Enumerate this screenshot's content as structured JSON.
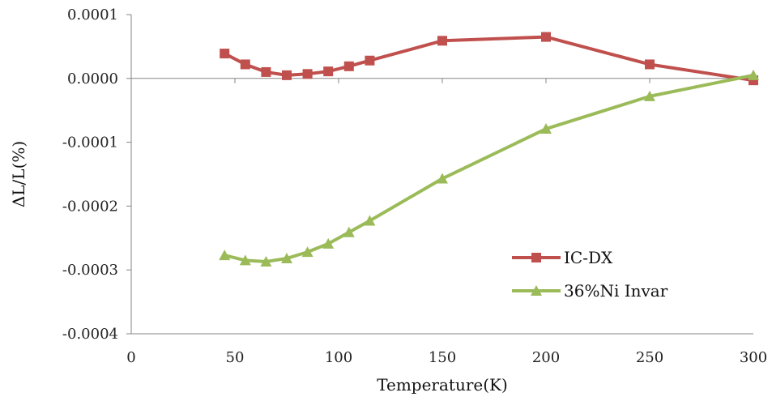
{
  "chart_data": {
    "type": "line",
    "title": "",
    "xlabel": "Temperature(K)",
    "ylabel": "ΔL/L(%)",
    "xlim": [
      0,
      300
    ],
    "ylim": [
      -0.0004,
      0.0001
    ],
    "x_ticks": [
      0,
      50,
      100,
      150,
      200,
      250,
      300
    ],
    "y_ticks": [
      0.0001,
      0.0,
      -0.0001,
      -0.0002,
      -0.0003,
      -0.0004
    ],
    "x_tick_labels": [
      "0",
      "50",
      "100",
      "150",
      "200",
      "250",
      "300"
    ],
    "y_tick_labels": [
      "0.0001",
      "0.0000",
      "-0.0001",
      "-0.0002",
      "-0.0003",
      "-0.0004"
    ],
    "grid": false,
    "legend_position": "right-lower",
    "series": [
      {
        "name": "IC-DX",
        "color": "#c0504d",
        "marker": "square",
        "x": [
          45,
          55,
          65,
          75,
          85,
          95,
          105,
          115,
          150,
          200,
          250,
          300
        ],
        "y": [
          3.9e-05,
          2.2e-05,
          1e-05,
          5e-06,
          7e-06,
          1.1e-05,
          1.9e-05,
          2.8e-05,
          5.9e-05,
          6.5e-05,
          2.2e-05,
          -3e-06
        ]
      },
      {
        "name": "36%Ni Invar",
        "color": "#9bbb59",
        "marker": "triangle",
        "x": [
          45,
          55,
          65,
          75,
          85,
          95,
          105,
          115,
          150,
          200,
          250,
          300
        ],
        "y": [
          -0.000277,
          -0.000285,
          -0.000287,
          -0.000282,
          -0.000272,
          -0.000259,
          -0.000241,
          -0.000223,
          -0.000157,
          -7.9e-05,
          -2.8e-05,
          5e-06
        ]
      }
    ]
  }
}
